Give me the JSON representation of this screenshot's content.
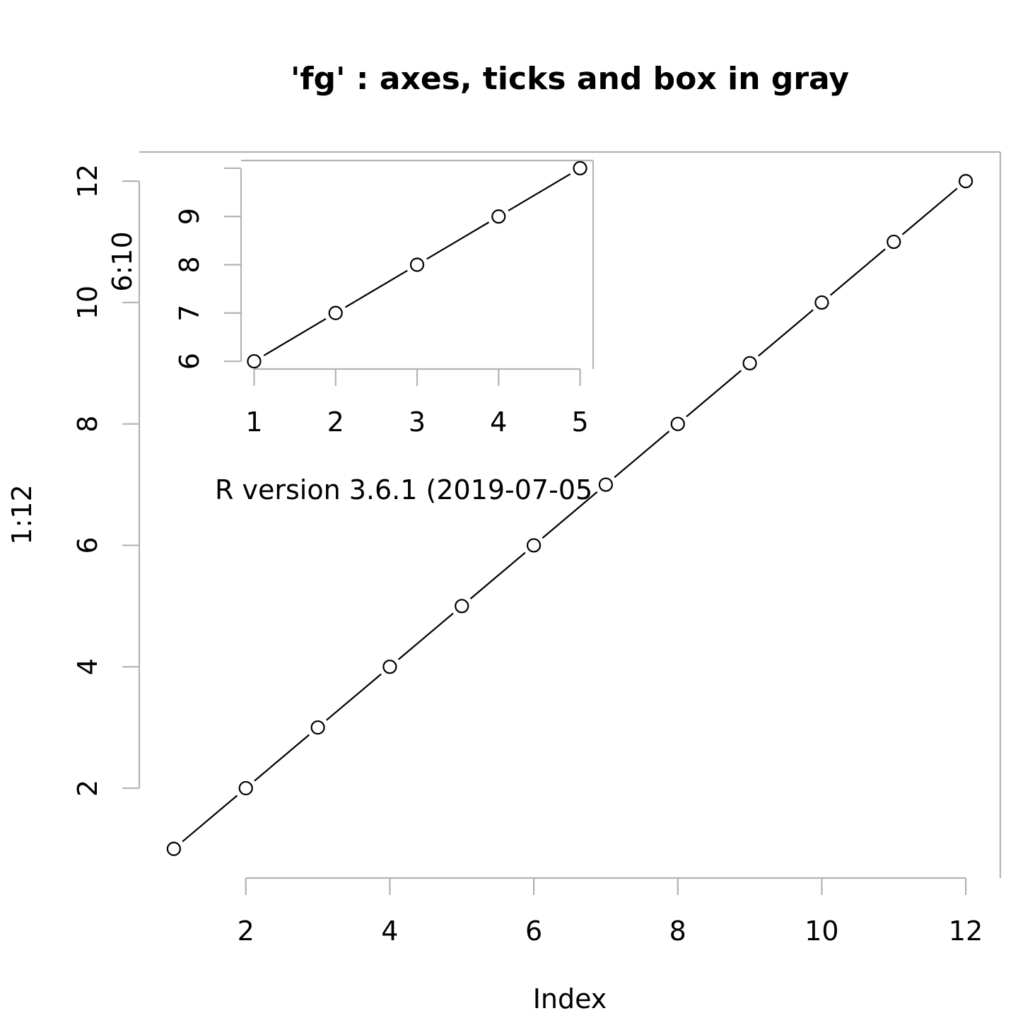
{
  "title": "'fg' : axes, ticks and box in gray",
  "note": "R version 3.6.1 (2019-07-05",
  "colors": {
    "axis": "#b3b3b3",
    "line": "#000000",
    "point_fill": "#ffffff",
    "text": "#000000"
  },
  "chart_data": [
    {
      "type": "line",
      "markers": "open-circle",
      "title": "'fg' : axes, ticks and box in gray",
      "xlabel": "Index",
      "ylabel": "1:12",
      "x": [
        1,
        2,
        3,
        4,
        5,
        6,
        7,
        8,
        9,
        10,
        11,
        12
      ],
      "values": [
        1,
        2,
        3,
        4,
        5,
        6,
        7,
        8,
        9,
        10,
        11,
        12
      ],
      "xlim": [
        0.52,
        12.48
      ],
      "ylim": [
        0.52,
        12.48
      ],
      "xticks": [
        2,
        4,
        6,
        8,
        10,
        12
      ],
      "xtick_labels": [
        "2",
        "4",
        "6",
        "8",
        "10",
        "12"
      ],
      "yticks": [
        2,
        4,
        6,
        8,
        10,
        12
      ],
      "ytick_labels": [
        "2",
        "4",
        "6",
        "8",
        "10",
        "12"
      ],
      "grid": false,
      "box": "partial"
    },
    {
      "type": "line",
      "markers": "open-circle",
      "title": "",
      "xlabel": "",
      "ylabel": "6:10",
      "x": [
        1,
        2,
        3,
        4,
        5
      ],
      "values": [
        6,
        7,
        8,
        9,
        10
      ],
      "xlim": [
        0.84,
        5.16
      ],
      "ylim": [
        5.84,
        10.16
      ],
      "xticks": [
        1,
        2,
        3,
        4,
        5
      ],
      "xtick_labels": [
        "1",
        "2",
        "3",
        "4",
        "5"
      ],
      "yticks": [
        6,
        7,
        8,
        9,
        10
      ],
      "ytick_labels": [
        "6",
        "7",
        "8",
        "9",
        ""
      ],
      "grid": false,
      "box": "partial"
    }
  ]
}
